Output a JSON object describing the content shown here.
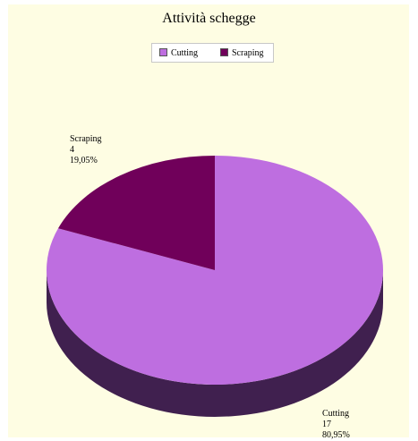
{
  "chart_data": {
    "type": "pie",
    "title": "Attività schegge",
    "legend_position": "top",
    "slices": [
      {
        "name": "Cutting",
        "value": 17,
        "percent": "80,95%",
        "color": "#be6ee0",
        "side_color": "#40204f"
      },
      {
        "name": "Scraping",
        "value": 4,
        "percent": "19,05%",
        "color": "#70005a",
        "side_color": "#3a0030"
      }
    ]
  },
  "colors": {
    "background": "#fefde3",
    "legend_bg": "#ffffff"
  }
}
